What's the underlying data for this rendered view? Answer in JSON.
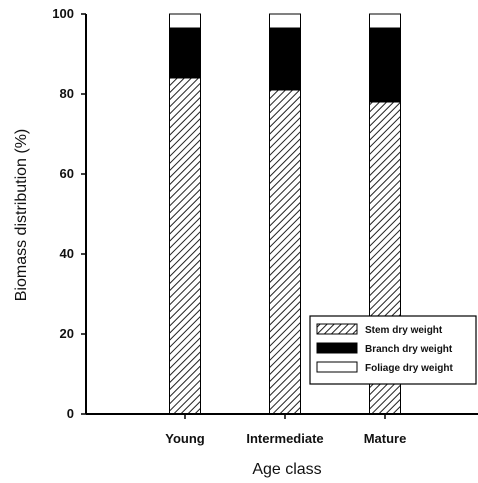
{
  "chart_data": {
    "type": "bar",
    "stacked": true,
    "categories": [
      "Young",
      "Intermediate",
      "Mature"
    ],
    "series": [
      {
        "name": "Stem dry weight",
        "values": [
          84,
          81,
          78
        ],
        "pattern": "diagonal-hatch",
        "color": "#222222"
      },
      {
        "name": "Branch dry weight",
        "values": [
          12.5,
          15.5,
          18.5
        ],
        "pattern": "solid",
        "color": "#000000"
      },
      {
        "name": "Foliage dry weight",
        "values": [
          3.5,
          3.5,
          3.5
        ],
        "pattern": "none",
        "color": "#ffffff"
      }
    ],
    "title": "",
    "xlabel": "Age class",
    "ylabel": "Biomass distribution (%)",
    "ylim": [
      0,
      100
    ],
    "yticks": [
      0,
      20,
      40,
      60,
      80,
      100
    ],
    "grid": false,
    "legend_position": "bottom-right"
  }
}
